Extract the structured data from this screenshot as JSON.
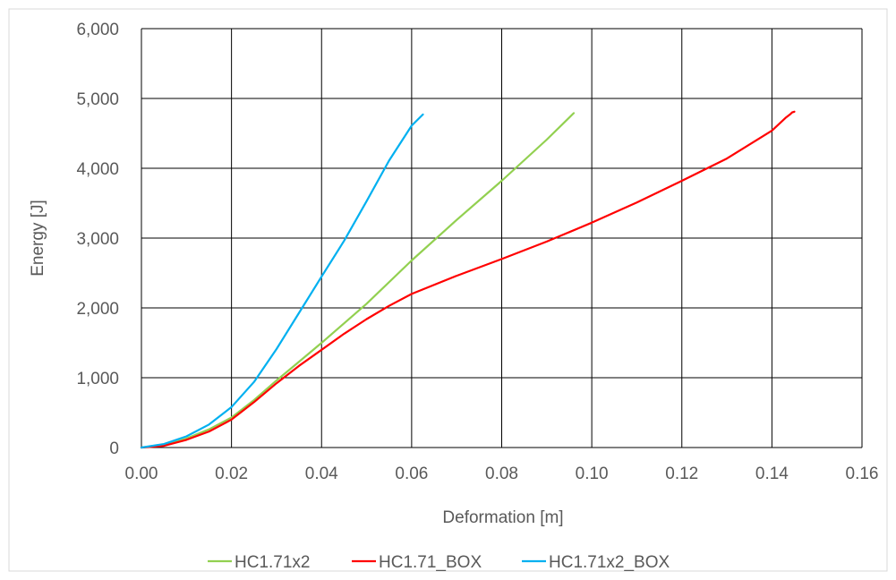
{
  "chart_data": {
    "type": "line",
    "title": "",
    "xlabel": "Deformation [m]",
    "ylabel": "Energy [J]",
    "xlim": [
      0,
      0.16
    ],
    "ylim": [
      0,
      6000
    ],
    "x_ticks": [
      0,
      0.02,
      0.04,
      0.06,
      0.08,
      0.1,
      0.12,
      0.14,
      0.16
    ],
    "x_tick_labels": [
      "0.00",
      "0.02",
      "0.04",
      "0.06",
      "0.08",
      "0.10",
      "0.12",
      "0.14",
      "0.16"
    ],
    "y_ticks": [
      0,
      1000,
      2000,
      3000,
      4000,
      5000,
      6000
    ],
    "y_tick_labels": [
      "0",
      "1,000",
      "2,000",
      "3,000",
      "4,000",
      "5,000",
      "6,000"
    ],
    "grid": true,
    "legend_position": "bottom",
    "series": [
      {
        "name": "HC1.71x2",
        "color": "#92D050",
        "x": [
          0,
          0.005,
          0.01,
          0.015,
          0.02,
          0.025,
          0.03,
          0.035,
          0.04,
          0.05,
          0.06,
          0.07,
          0.08,
          0.09,
          0.096
        ],
        "y": [
          0,
          30,
          130,
          260,
          430,
          680,
          960,
          1230,
          1500,
          2060,
          2680,
          3260,
          3820,
          4410,
          4790
        ]
      },
      {
        "name": "HC1.71_BOX",
        "color": "#FF0000",
        "x": [
          0,
          0.005,
          0.01,
          0.015,
          0.02,
          0.025,
          0.03,
          0.035,
          0.04,
          0.045,
          0.05,
          0.055,
          0.06,
          0.07,
          0.08,
          0.09,
          0.1,
          0.11,
          0.12,
          0.13,
          0.14,
          0.143,
          0.144,
          0.1445,
          0.145
        ],
        "y": [
          0,
          25,
          110,
          230,
          400,
          650,
          920,
          1170,
          1400,
          1630,
          1840,
          2030,
          2200,
          2460,
          2700,
          2950,
          3220,
          3510,
          3820,
          4140,
          4540,
          4720,
          4770,
          4800,
          4810
        ]
      },
      {
        "name": "HC1.71x2_BOX",
        "color": "#00B0F0",
        "x": [
          0,
          0.005,
          0.01,
          0.015,
          0.02,
          0.025,
          0.03,
          0.035,
          0.04,
          0.045,
          0.05,
          0.055,
          0.06,
          0.0625
        ],
        "y": [
          0,
          50,
          160,
          330,
          580,
          940,
          1410,
          1930,
          2450,
          2960,
          3530,
          4110,
          4610,
          4770
        ]
      }
    ]
  }
}
